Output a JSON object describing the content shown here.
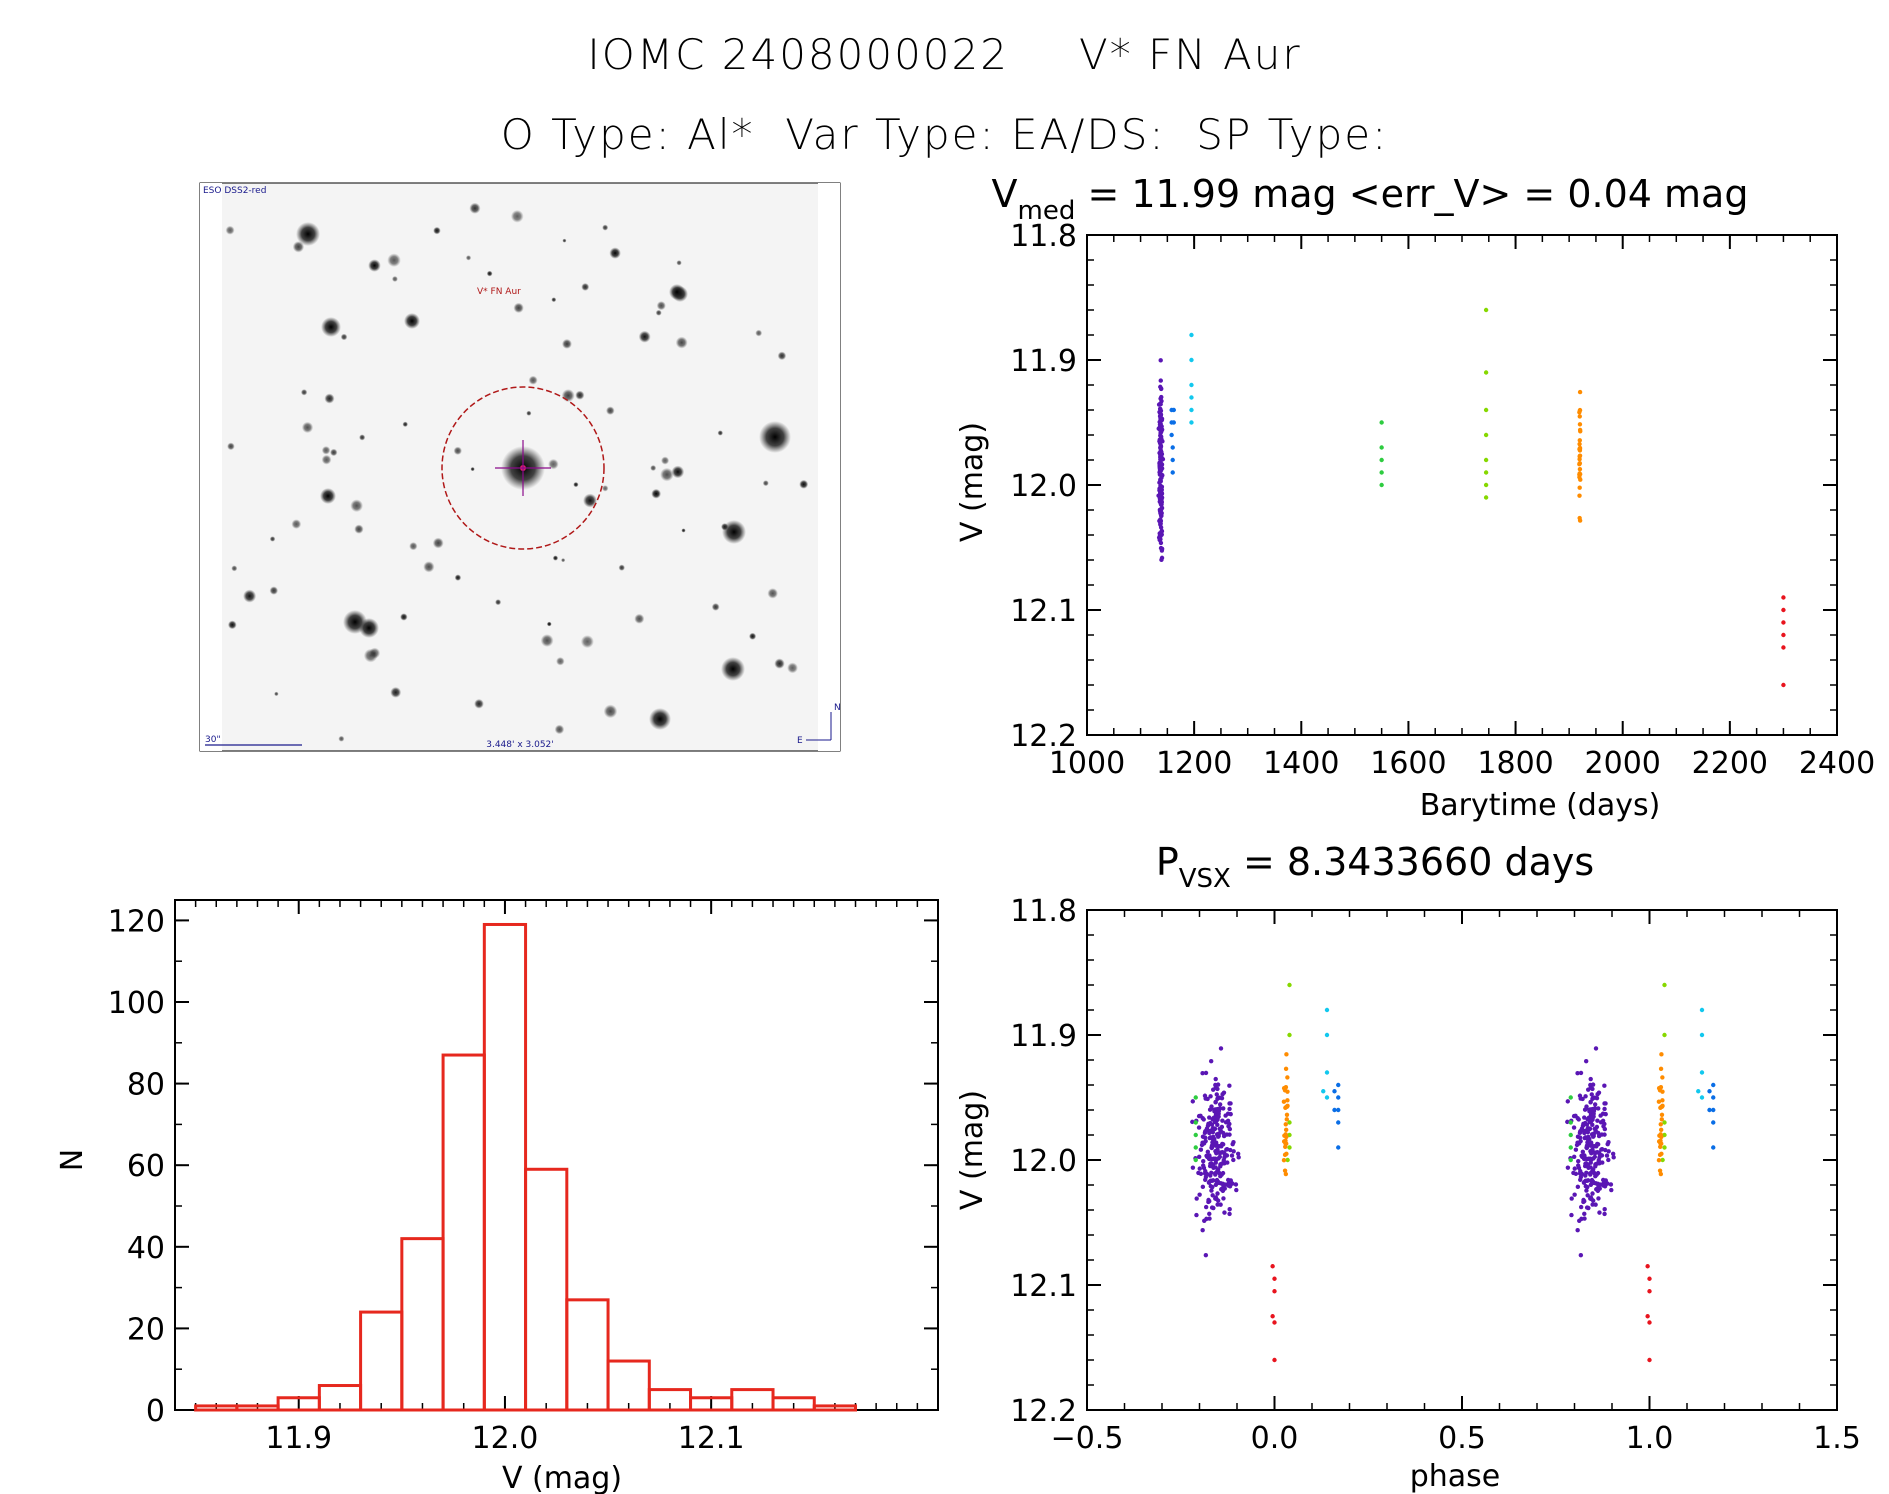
{
  "header": {
    "object_id": "IOMC 2408000022",
    "star_name": "V* FN Aur",
    "type_line": "O Type: Al*  Var Type: EA/DS:  SP Type:"
  },
  "colors": {
    "histogram": "#e6281e",
    "axis": "#000000",
    "groups": [
      "#5a16b4",
      "#0a6ee6",
      "#12c8ee",
      "#2ecc40",
      "#86d800",
      "#ff8c00",
      "#e8141e"
    ]
  },
  "finder": {
    "survey_label": "ESO DSS2-red",
    "target_label": "V* FN Aur",
    "scale_label": "30\"",
    "fov_label": "3.448' x 3.052'",
    "east_label": "E",
    "north_label": "N"
  },
  "chart_data": [
    {
      "type": "scatter",
      "id": "lightcurve",
      "title_main": "V",
      "title_sub": "med",
      "title_rest": " = 11.99 mag <err_V> = 0.04 mag",
      "xlabel": "Barytime (days)",
      "ylabel": "V (mag)",
      "xlim": [
        1000,
        2400
      ],
      "ylim": [
        12.2,
        11.8
      ],
      "xticks": [
        1000,
        1200,
        1400,
        1600,
        1800,
        2000,
        2200,
        2400
      ],
      "xtick_labels": [
        "1000",
        "1200",
        "1400",
        "1600",
        "1800",
        "2000",
        "2200",
        "2400"
      ],
      "yticks": [
        11.8,
        11.9,
        12.0,
        12.1,
        12.2
      ],
      "ytick_labels": [
        "11.8",
        "11.9",
        "12.0",
        "12.1",
        "12.2"
      ],
      "series": [
        {
          "name": "group1",
          "color_index": 0,
          "x_center": 1138,
          "x_spread": 3,
          "n": 180,
          "y_center": 11.99,
          "y_spread": 0.06
        },
        {
          "name": "group2",
          "color_index": 1,
          "points": [
            [
              1158,
              11.94
            ],
            [
              1158,
              11.95
            ],
            [
              1158,
              11.96
            ],
            [
              1160,
              11.97
            ],
            [
              1160,
              11.98
            ],
            [
              1160,
              11.99
            ],
            [
              1162,
              11.94
            ],
            [
              1162,
              11.95
            ]
          ]
        },
        {
          "name": "group3",
          "color_index": 2,
          "points": [
            [
              1195,
              11.88
            ],
            [
              1195,
              11.9
            ],
            [
              1195,
              11.92
            ],
            [
              1195,
              11.93
            ],
            [
              1195,
              11.94
            ],
            [
              1195,
              11.95
            ]
          ]
        },
        {
          "name": "group4",
          "color_index": 3,
          "points": [
            [
              1550,
              11.95
            ],
            [
              1550,
              11.97
            ],
            [
              1550,
              11.98
            ],
            [
              1550,
              11.99
            ],
            [
              1550,
              12.0
            ]
          ]
        },
        {
          "name": "group5",
          "color_index": 4,
          "points": [
            [
              1745,
              11.86
            ],
            [
              1745,
              11.91
            ],
            [
              1745,
              11.94
            ],
            [
              1745,
              11.96
            ],
            [
              1745,
              11.98
            ],
            [
              1745,
              11.99
            ],
            [
              1745,
              12.0
            ],
            [
              1745,
              12.01
            ]
          ]
        },
        {
          "name": "group6",
          "color_index": 5,
          "x_center": 1920,
          "x_spread": 1,
          "n": 30,
          "y_center": 11.975,
          "y_spread": 0.045
        },
        {
          "name": "group7",
          "color_index": 6,
          "points": [
            [
              2300,
              12.09
            ],
            [
              2300,
              12.1
            ],
            [
              2300,
              12.11
            ],
            [
              2300,
              12.12
            ],
            [
              2300,
              12.13
            ],
            [
              2300,
              12.16
            ]
          ]
        }
      ]
    },
    {
      "type": "bar",
      "id": "histogram",
      "xlabel": "V (mag)",
      "ylabel": "N",
      "xlim": [
        11.84,
        12.21
      ],
      "ylim": [
        0,
        125
      ],
      "bin_width": 0.02,
      "bin_starts": [
        11.85,
        11.87,
        11.89,
        11.91,
        11.93,
        11.95,
        11.97,
        11.99,
        12.01,
        12.03,
        12.05,
        12.07,
        12.09,
        12.11,
        12.13,
        12.15
      ],
      "values": [
        1,
        1,
        3,
        6,
        24,
        42,
        87,
        119,
        59,
        27,
        12,
        5,
        3,
        5,
        3,
        1
      ],
      "xticks": [
        11.9,
        12.0,
        12.1
      ],
      "xtick_labels": [
        "11.9",
        "12.0",
        "12.1"
      ],
      "yticks": [
        0,
        20,
        40,
        60,
        80,
        100,
        120
      ],
      "ytick_labels": [
        "0",
        "20",
        "40",
        "60",
        "80",
        "100",
        "120"
      ]
    },
    {
      "type": "scatter",
      "id": "phased",
      "title_main": "P",
      "title_sub": "VSX",
      "title_rest": " = 8.3433660 days",
      "xlabel": "phase",
      "ylabel": "V (mag)",
      "xlim": [
        -0.5,
        1.5
      ],
      "ylim": [
        12.2,
        11.8
      ],
      "xticks": [
        -0.5,
        0.0,
        0.5,
        1.0,
        1.5
      ],
      "xtick_labels": [
        "−0.5",
        "0.0",
        "0.5",
        "1.0",
        "1.5"
      ],
      "yticks": [
        11.8,
        11.9,
        12.0,
        12.1,
        12.2
      ],
      "ytick_labels": [
        "11.8",
        "11.9",
        "12.0",
        "12.1",
        "12.2"
      ],
      "repeat_offset": 1.0,
      "series": [
        {
          "name": "group1",
          "color_index": 0,
          "x_center": -0.155,
          "x_spread": 0.05,
          "n": 260,
          "y_center": 11.99,
          "y_spread": 0.055
        },
        {
          "name": "group2",
          "color_index": 1,
          "points": [
            [
              0.17,
              11.94
            ],
            [
              0.17,
              11.95
            ],
            [
              0.17,
              11.96
            ],
            [
              0.17,
              11.97
            ],
            [
              0.17,
              11.99
            ],
            [
              0.16,
              11.945
            ],
            [
              0.16,
              11.96
            ]
          ]
        },
        {
          "name": "group3",
          "color_index": 2,
          "points": [
            [
              0.14,
              11.88
            ],
            [
              0.14,
              11.9
            ],
            [
              0.14,
              11.93
            ],
            [
              0.14,
              11.95
            ],
            [
              0.13,
              11.945
            ]
          ]
        },
        {
          "name": "group4",
          "color_index": 3,
          "points": [
            [
              -0.21,
              11.95
            ],
            [
              -0.21,
              11.97
            ],
            [
              -0.21,
              11.98
            ],
            [
              -0.21,
              11.99
            ],
            [
              -0.21,
              12.0
            ]
          ]
        },
        {
          "name": "group5",
          "color_index": 4,
          "points": [
            [
              0.04,
              11.86
            ],
            [
              0.04,
              11.9
            ],
            [
              0.04,
              11.97
            ],
            [
              0.04,
              11.98
            ],
            [
              0.04,
              11.99
            ],
            [
              0.035,
              12.0
            ]
          ]
        },
        {
          "name": "group6",
          "color_index": 5,
          "x_center": 0.03,
          "x_spread": 0.006,
          "n": 30,
          "y_center": 11.97,
          "y_spread": 0.045
        },
        {
          "name": "group7",
          "color_index": 6,
          "points": [
            [
              -0.005,
              12.085
            ],
            [
              0.0,
              12.095
            ],
            [
              0.0,
              12.105
            ],
            [
              -0.005,
              12.125
            ],
            [
              0.0,
              12.13
            ],
            [
              0.0,
              12.16
            ]
          ]
        }
      ]
    }
  ]
}
